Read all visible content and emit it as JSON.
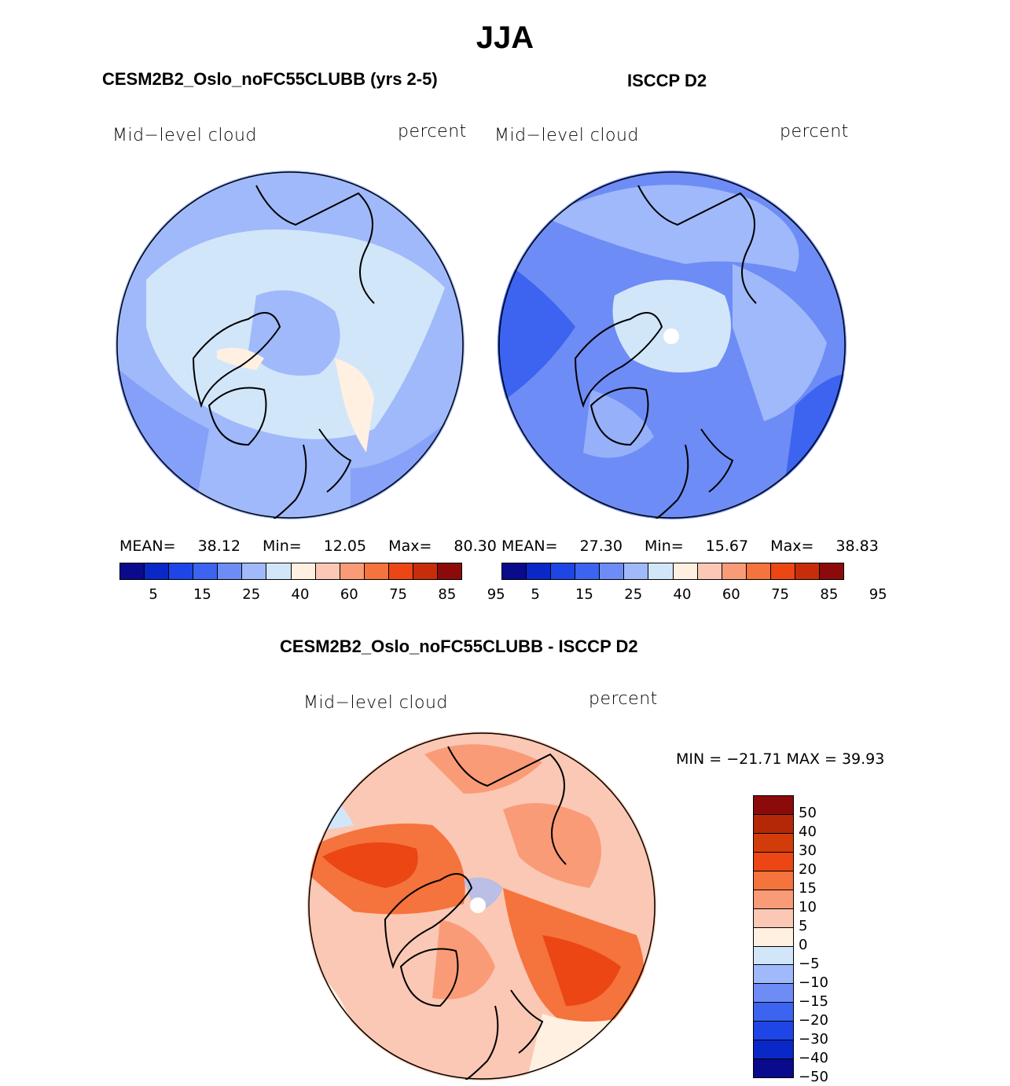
{
  "title": "JJA",
  "panels": {
    "model": {
      "title": "CESM2B2_Oslo_noFC55CLUBB (yrs 2-5)",
      "variable": "Mid−level cloud",
      "units": "percent",
      "stats": {
        "mean_label": "MEAN=",
        "mean": "38.12",
        "min_label": "Min=",
        "min": "12.05",
        "max_label": "Max=",
        "max": "80.30"
      }
    },
    "obs": {
      "title": "ISCCP D2",
      "variable": "Mid−level cloud",
      "units": "percent",
      "stats": {
        "mean_label": "MEAN=",
        "mean": "27.30",
        "min_label": "Min=",
        "min": "15.67",
        "max_label": "Max=",
        "max": "38.83"
      }
    },
    "diff": {
      "title": "CESM2B2_Oslo_noFC55CLUBB - ISCCP D2",
      "variable": "Mid−level cloud",
      "units": "percent",
      "minmax": "MIN = −21.71 MAX =   39.93"
    }
  },
  "colorbar_abs": {
    "colors": [
      "#0a0a8c",
      "#0a28c8",
      "#1e46e6",
      "#3c64f0",
      "#6e8cf5",
      "#a0b9fa",
      "#d2e6fa",
      "#fff0e1",
      "#fac8b4",
      "#fa9b78",
      "#f5733c",
      "#eb4614",
      "#c82d0a",
      "#8c0a0a"
    ],
    "labels": [
      "5",
      "15",
      "25",
      "40",
      "60",
      "75",
      "85",
      "95"
    ]
  },
  "colorbar_diff": {
    "colors": [
      "#8c0a0a",
      "#b42808",
      "#d23c0a",
      "#eb4614",
      "#f5733c",
      "#fa9b78",
      "#fac8b4",
      "#fff0e1",
      "#d2e6fa",
      "#a0b9fa",
      "#6e8cf5",
      "#3c64f0",
      "#1e46e6",
      "#0a28c8",
      "#0a0a8c"
    ],
    "labels": [
      "50",
      "40",
      "30",
      "20",
      "15",
      "10",
      "5",
      "0",
      "−5",
      "−10",
      "−15",
      "−20",
      "−30",
      "−40",
      "−50"
    ]
  },
  "map_fill": {
    "model_base": "#a0b9fa",
    "obs_base": "#6e8cf5",
    "diff_base": "#fac8b4"
  }
}
